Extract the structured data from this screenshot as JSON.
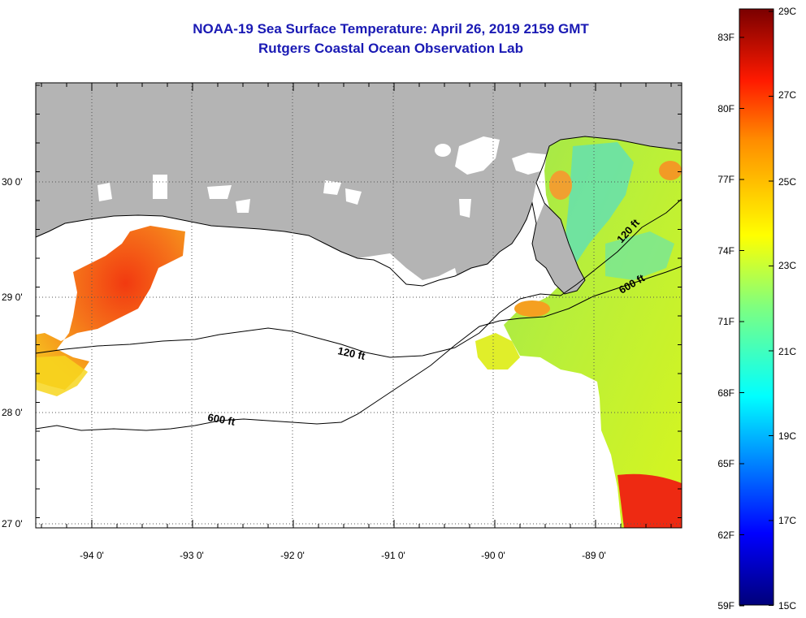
{
  "title": "NOAA-19 Sea Surface Temperature:  April 26, 2019 2159 GMT",
  "subtitle": "Rutgers Coastal Ocean Observation Lab",
  "map": {
    "lat_labels": [
      "30 0'",
      "29 0'",
      "28 0'",
      "27 0'"
    ],
    "lon_labels": [
      "-94 0'",
      "-93 0'",
      "-92 0'",
      "-91 0'",
      "-90 0'",
      "-89 0'"
    ],
    "contour_labels": {
      "c120_left": "120 ft",
      "c120_right": "120 ft",
      "c600_left": "600 ft",
      "c600_right": "600 ft"
    },
    "colors": {
      "land": "#b4b4b4",
      "ocean_nodata": "#ffffff",
      "gridline": "#555555"
    }
  },
  "colorbar": {
    "fahrenheit_labels": [
      "83F",
      "80F",
      "77F",
      "74F",
      "71F",
      "68F",
      "65F",
      "62F",
      "59F"
    ],
    "celsius_labels": [
      "29C",
      "27C",
      "25C",
      "23C",
      "21C",
      "19C",
      "17C",
      "15C"
    ],
    "range_c": [
      15,
      29
    ],
    "range_f": [
      59,
      84.2
    ],
    "colormap": "jet"
  }
}
